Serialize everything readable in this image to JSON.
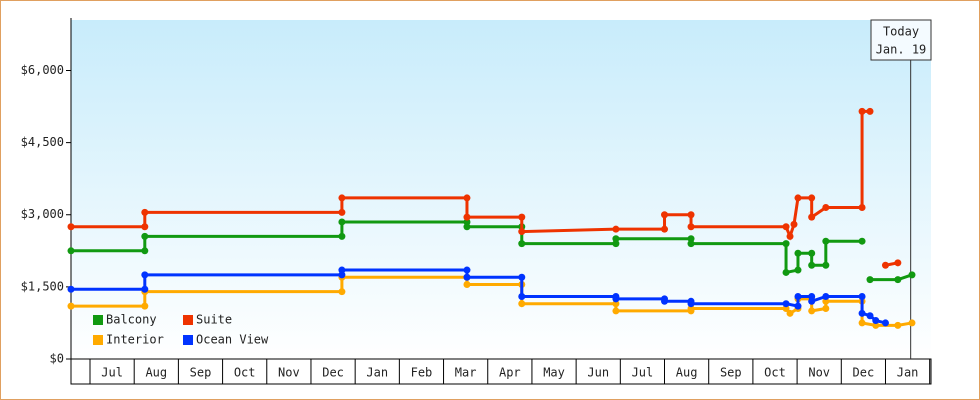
{
  "chart_data": {
    "type": "step-line",
    "ylim": [
      0,
      7050
    ],
    "yticks": [
      {
        "value": 0,
        "label": "$0"
      },
      {
        "value": 1500,
        "label": "$1,500"
      },
      {
        "value": 3000,
        "label": "$3,000"
      },
      {
        "value": 4500,
        "label": "$4,500"
      },
      {
        "value": 6000,
        "label": "$6,000"
      }
    ],
    "xlim": [
      -0.43,
      19.03
    ],
    "xticks": [
      0,
      1,
      2,
      3,
      4,
      5,
      6,
      7,
      8,
      9,
      10,
      11,
      12,
      13,
      14,
      15,
      16,
      17,
      18,
      19
    ],
    "categories": [
      "Jul",
      "Aug",
      "Sep",
      "Oct",
      "Nov",
      "Dec",
      "Jan",
      "Feb",
      "Mar",
      "Apr",
      "May",
      "Jun",
      "Jul",
      "Aug",
      "Sep",
      "Oct",
      "Nov",
      "Dec",
      "Jan"
    ],
    "annotation": {
      "x": 18.57,
      "lines": [
        "Today",
        "Jan. 19"
      ]
    },
    "legend": "bottom-left",
    "series": [
      {
        "name": "Balcony",
        "color": "#119911",
        "x": [
          -0.43,
          1.24,
          1.24,
          5.7,
          5.7,
          8.53,
          8.53,
          9.77,
          9.77,
          11.9,
          11.9,
          13.6,
          13.6,
          15.75,
          15.75,
          16.02,
          16.02,
          16.33,
          16.33,
          16.65,
          16.65,
          17.47,
          null,
          17.65,
          18.28,
          18.6
        ],
        "values": [
          2250,
          2250,
          2550,
          2550,
          2850,
          2850,
          2750,
          2750,
          2400,
          2400,
          2500,
          2500,
          2400,
          2400,
          1800,
          1850,
          2200,
          2200,
          1950,
          1950,
          2450,
          2450,
          null,
          1650,
          1650,
          1750
        ]
      },
      {
        "name": "Suite",
        "color": "#ee3300",
        "x": [
          -0.43,
          1.24,
          1.24,
          5.7,
          5.7,
          8.53,
          8.53,
          9.77,
          9.77,
          11.9,
          13.0,
          13.0,
          13.6,
          13.6,
          15.75,
          15.84,
          15.93,
          16.02,
          16.33,
          16.33,
          16.65,
          17.47,
          17.47,
          17.65,
          null,
          18.0,
          18.28
        ],
        "values": [
          2750,
          2750,
          3050,
          3050,
          3350,
          3350,
          2950,
          2950,
          2650,
          2700,
          2700,
          3000,
          3000,
          2750,
          2750,
          2550,
          2800,
          3350,
          3350,
          2950,
          3150,
          3150,
          5150,
          5150,
          null,
          1950,
          2000
        ]
      },
      {
        "name": "Interior",
        "color": "#ffaa00",
        "x": [
          -0.43,
          1.24,
          1.24,
          5.7,
          5.7,
          8.53,
          8.53,
          9.77,
          9.77,
          11.9,
          11.9,
          13.6,
          13.6,
          15.75,
          15.84,
          16.02,
          16.02,
          16.33,
          16.33,
          16.65,
          16.65,
          17.47,
          17.47,
          17.78,
          18.28,
          18.6
        ],
        "values": [
          1100,
          1100,
          1400,
          1400,
          1700,
          1700,
          1550,
          1550,
          1150,
          1150,
          1000,
          1000,
          1050,
          1050,
          950,
          1050,
          1250,
          1250,
          1000,
          1050,
          1200,
          1200,
          750,
          700,
          700,
          750
        ]
      },
      {
        "name": "Ocean View",
        "color": "#0033ff",
        "x": [
          -0.43,
          1.24,
          1.24,
          5.7,
          5.7,
          8.53,
          8.53,
          9.77,
          9.77,
          11.9,
          11.9,
          13.0,
          13.0,
          13.6,
          13.6,
          15.75,
          16.02,
          16.02,
          16.33,
          16.33,
          16.65,
          17.47,
          17.47,
          17.65,
          17.78,
          18.0
        ],
        "values": [
          1450,
          1450,
          1750,
          1750,
          1850,
          1850,
          1700,
          1700,
          1300,
          1300,
          1250,
          1250,
          1200,
          1200,
          1150,
          1150,
          1100,
          1300,
          1300,
          1200,
          1300,
          1300,
          950,
          900,
          800,
          750
        ]
      }
    ]
  }
}
